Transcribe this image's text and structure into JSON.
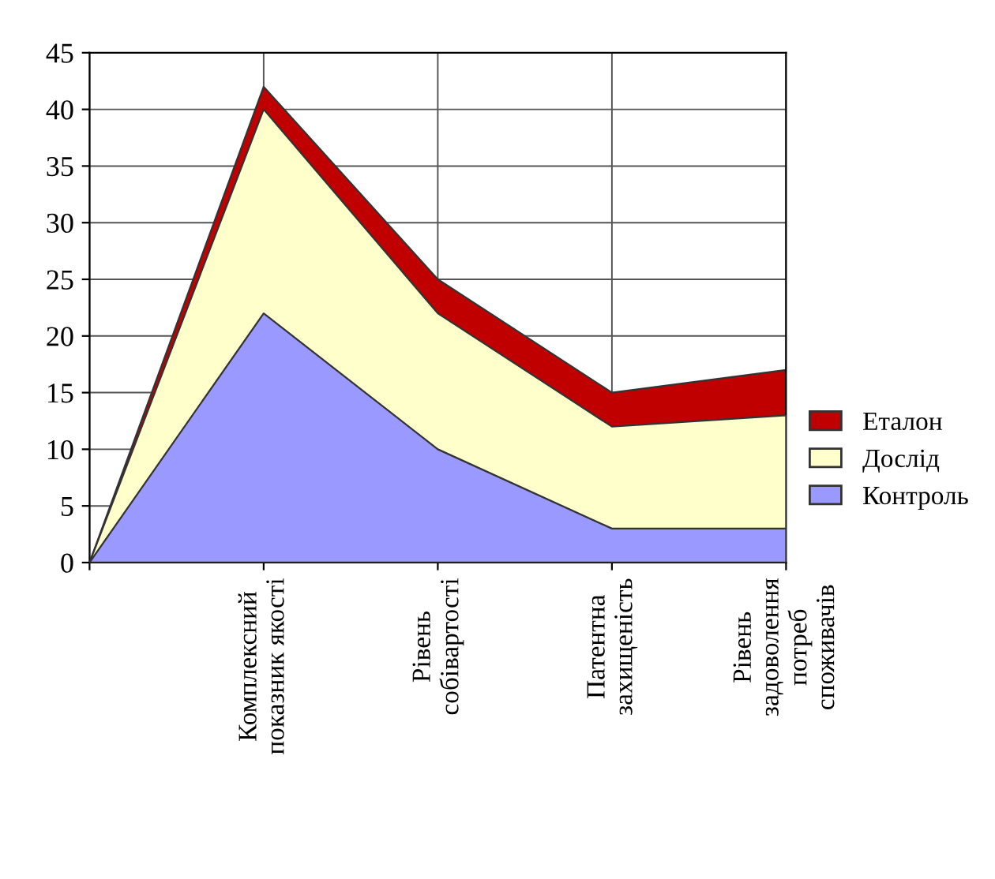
{
  "chart_data": {
    "type": "area",
    "categories": [
      null,
      "Комплексний\nпоказник якості",
      "Рівень\nсобівартості",
      "Патентна\nзахищеність",
      "Рівень\nзадоволення\nпотреб\nспоживачів"
    ],
    "series": [
      {
        "name": "Контроль",
        "color": "#9999ff",
        "values": [
          0,
          22,
          10,
          3,
          3
        ]
      },
      {
        "name": "Дослід",
        "color": "#ffffcc",
        "values": [
          0,
          40,
          22,
          12,
          13
        ]
      },
      {
        "name": "Еталон",
        "color": "#c00000",
        "values": [
          0,
          42,
          25,
          15,
          17
        ]
      }
    ],
    "ylim": [
      0,
      45
    ],
    "yticks": [
      0,
      5,
      10,
      15,
      20,
      25,
      30,
      35,
      40,
      45
    ],
    "grid": true,
    "legend": "right"
  }
}
